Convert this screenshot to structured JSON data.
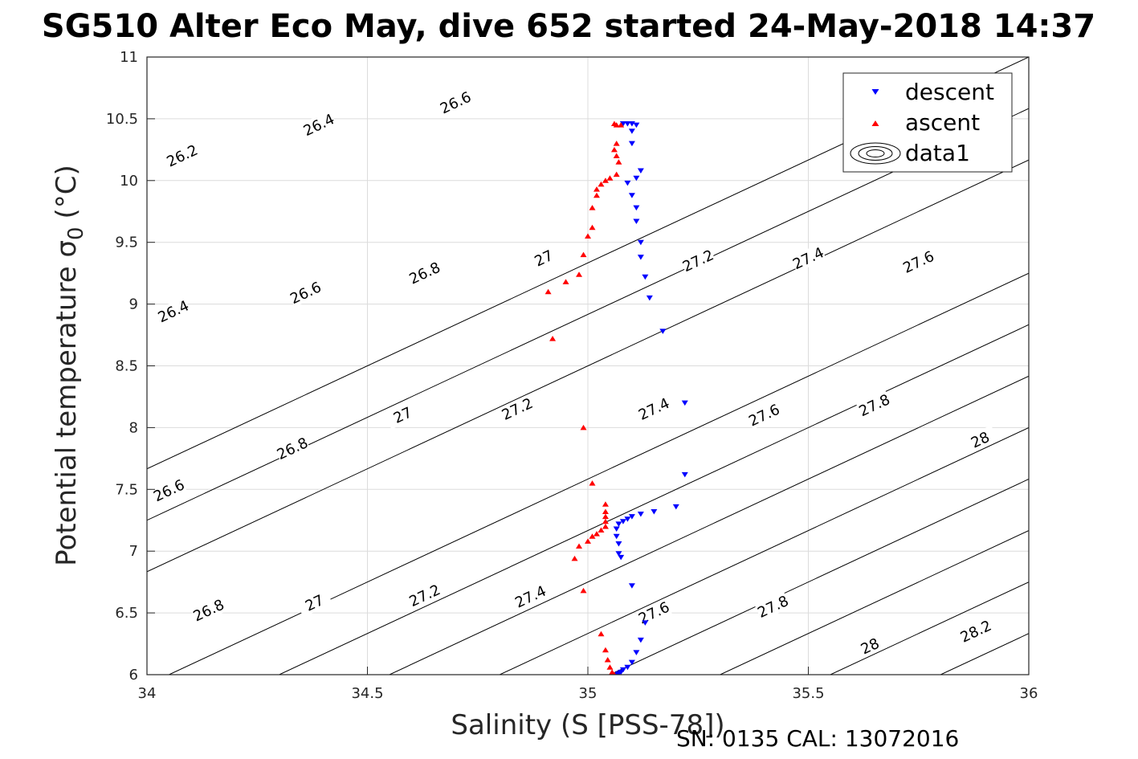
{
  "chart_data": {
    "type": "scatter",
    "title": "SG510 Alter Eco May, dive 652 started 24-May-2018 14:37",
    "xlabel": "Salinity (S [PSS-78])",
    "ylabel": "Potential temperature σ",
    "ylabel_sub": "0",
    "ylabel_unit": "(°C)",
    "xlim": [
      34,
      36
    ],
    "ylim": [
      6,
      11
    ],
    "xticks": [
      34,
      34.5,
      35,
      35.5,
      36
    ],
    "xtick_labels": [
      "34",
      "34.5",
      "35",
      "35.5",
      "36"
    ],
    "yticks": [
      6,
      6.5,
      7,
      7.5,
      8,
      8.5,
      9,
      9.5,
      10,
      10.5,
      11
    ],
    "ytick_labels": [
      "6",
      "6.5",
      "7",
      "7.5",
      "8",
      "8.5",
      "9",
      "9.5",
      "10",
      "10.5",
      "11"
    ],
    "grid": true,
    "legend_position": "top-right",
    "series": [
      {
        "name": "descent",
        "marker": "triangle-down",
        "color": "#0000ff",
        "points": [
          [
            35.08,
            10.46
          ],
          [
            35.09,
            10.46
          ],
          [
            35.1,
            10.46
          ],
          [
            35.11,
            10.45
          ],
          [
            35.1,
            10.4
          ],
          [
            35.1,
            10.3
          ],
          [
            35.12,
            10.08
          ],
          [
            35.11,
            10.02
          ],
          [
            35.09,
            9.98
          ],
          [
            35.1,
            9.88
          ],
          [
            35.11,
            9.78
          ],
          [
            35.11,
            9.67
          ],
          [
            35.12,
            9.5
          ],
          [
            35.12,
            9.38
          ],
          [
            35.13,
            9.22
          ],
          [
            35.14,
            9.05
          ],
          [
            35.17,
            8.78
          ],
          [
            35.22,
            8.2
          ],
          [
            35.22,
            7.62
          ],
          [
            35.2,
            7.36
          ],
          [
            35.15,
            7.32
          ],
          [
            35.12,
            7.3
          ],
          [
            35.1,
            7.28
          ],
          [
            35.09,
            7.26
          ],
          [
            35.08,
            7.24
          ],
          [
            35.07,
            7.22
          ],
          [
            35.065,
            7.18
          ],
          [
            35.065,
            7.12
          ],
          [
            35.07,
            7.06
          ],
          [
            35.07,
            6.98
          ],
          [
            35.075,
            6.95
          ],
          [
            35.1,
            6.72
          ],
          [
            35.13,
            6.42
          ],
          [
            35.12,
            6.28
          ],
          [
            35.11,
            6.18
          ],
          [
            35.1,
            6.1
          ],
          [
            35.09,
            6.06
          ],
          [
            35.08,
            6.04
          ],
          [
            35.075,
            6.02
          ],
          [
            35.07,
            6.01
          ],
          [
            35.065,
            6.0
          ]
        ]
      },
      {
        "name": "ascent",
        "marker": "triangle-up",
        "color": "#ff0000",
        "points": [
          [
            35.06,
            10.46
          ],
          [
            35.065,
            10.45
          ],
          [
            35.075,
            10.45
          ],
          [
            35.065,
            10.3
          ],
          [
            35.06,
            10.25
          ],
          [
            35.065,
            10.2
          ],
          [
            35.07,
            10.15
          ],
          [
            35.065,
            10.05
          ],
          [
            35.05,
            10.02
          ],
          [
            35.04,
            10.0
          ],
          [
            35.03,
            9.97
          ],
          [
            35.02,
            9.93
          ],
          [
            35.02,
            9.88
          ],
          [
            35.01,
            9.78
          ],
          [
            35.01,
            9.62
          ],
          [
            35.0,
            9.55
          ],
          [
            34.99,
            9.4
          ],
          [
            34.98,
            9.24
          ],
          [
            34.95,
            9.18
          ],
          [
            34.91,
            9.1
          ],
          [
            34.92,
            8.72
          ],
          [
            34.99,
            8.0
          ],
          [
            35.01,
            7.55
          ],
          [
            35.04,
            7.38
          ],
          [
            35.04,
            7.32
          ],
          [
            35.04,
            7.28
          ],
          [
            35.04,
            7.24
          ],
          [
            35.04,
            7.2
          ],
          [
            35.03,
            7.17
          ],
          [
            35.02,
            7.14
          ],
          [
            35.01,
            7.12
          ],
          [
            35.0,
            7.08
          ],
          [
            34.98,
            7.04
          ],
          [
            34.97,
            6.94
          ],
          [
            34.99,
            6.68
          ],
          [
            35.03,
            6.33
          ],
          [
            35.04,
            6.2
          ],
          [
            35.045,
            6.12
          ],
          [
            35.05,
            6.06
          ],
          [
            35.055,
            6.02
          ],
          [
            35.06,
            6.0
          ]
        ]
      }
    ],
    "legend": [
      {
        "name": "descent",
        "icon": "blue-triangle-down-icon"
      },
      {
        "name": "ascent",
        "icon": "red-triangle-up-icon"
      },
      {
        "name": "data1",
        "icon": "contour-ellipse-icon"
      }
    ],
    "contours": [
      {
        "level": 26.2,
        "label": "26.2",
        "x_at_6": 33.0
      },
      {
        "level": 26.4,
        "label": "26.4",
        "x_at_6": 33.25
      },
      {
        "level": 26.6,
        "label": "26.6",
        "x_at_6": 33.5
      },
      {
        "level": 26.8,
        "label": "26.8",
        "x_at_6": 34.05
      },
      {
        "level": 27.0,
        "label": "27",
        "x_at_6": 34.3
      },
      {
        "level": 27.2,
        "label": "27.2",
        "x_at_6": 34.55
      },
      {
        "level": 27.4,
        "label": "27.4",
        "x_at_6": 34.8
      },
      {
        "level": 27.6,
        "label": "27.6",
        "x_at_6": 35.05
      },
      {
        "level": 27.8,
        "label": "27.8",
        "x_at_6": 35.3
      },
      {
        "level": 28.0,
        "label": "28",
        "x_at_6": 35.55
      },
      {
        "level": 28.2,
        "label": "28.2",
        "x_at_6": 35.8
      }
    ],
    "contour_labels": [
      {
        "text": "26.2",
        "x": 34.08,
        "y": 10.2
      },
      {
        "text": "26.4",
        "x": 34.39,
        "y": 10.45
      },
      {
        "text": "26.6",
        "x": 34.7,
        "y": 10.63
      },
      {
        "text": "26.4",
        "x": 34.06,
        "y": 8.94
      },
      {
        "text": "26.6",
        "x": 34.36,
        "y": 9.09
      },
      {
        "text": "26.8",
        "x": 34.63,
        "y": 9.25
      },
      {
        "text": "27",
        "x": 34.9,
        "y": 9.37
      },
      {
        "text": "27.2",
        "x": 35.25,
        "y": 9.35
      },
      {
        "text": "27.4",
        "x": 35.5,
        "y": 9.37
      },
      {
        "text": "27.6",
        "x": 35.75,
        "y": 9.34
      },
      {
        "text": "26.6",
        "x": 34.05,
        "y": 7.49
      },
      {
        "text": "26.8",
        "x": 34.33,
        "y": 7.83
      },
      {
        "text": "27",
        "x": 34.58,
        "y": 8.1
      },
      {
        "text": "27.2",
        "x": 34.84,
        "y": 8.15
      },
      {
        "text": "27.4",
        "x": 35.15,
        "y": 8.15
      },
      {
        "text": "27.6",
        "x": 35.4,
        "y": 8.1
      },
      {
        "text": "27.8",
        "x": 35.65,
        "y": 8.18
      },
      {
        "text": "28",
        "x": 35.89,
        "y": 7.9
      },
      {
        "text": "26.8",
        "x": 34.14,
        "y": 6.52
      },
      {
        "text": "27",
        "x": 34.38,
        "y": 6.58
      },
      {
        "text": "27.2",
        "x": 34.63,
        "y": 6.64
      },
      {
        "text": "27.4",
        "x": 34.87,
        "y": 6.63
      },
      {
        "text": "27.6",
        "x": 35.15,
        "y": 6.5
      },
      {
        "text": "27.8",
        "x": 35.42,
        "y": 6.55
      },
      {
        "text": "28",
        "x": 35.64,
        "y": 6.23
      },
      {
        "text": "28.2",
        "x": 35.88,
        "y": 6.35
      }
    ]
  },
  "footer": "SN: 0135  CAL: 13072016",
  "colors": {
    "descent": "#0000ff",
    "ascent": "#ff0000",
    "contour": "#000000",
    "grid": "#dcdcdc",
    "axis": "#262626"
  }
}
